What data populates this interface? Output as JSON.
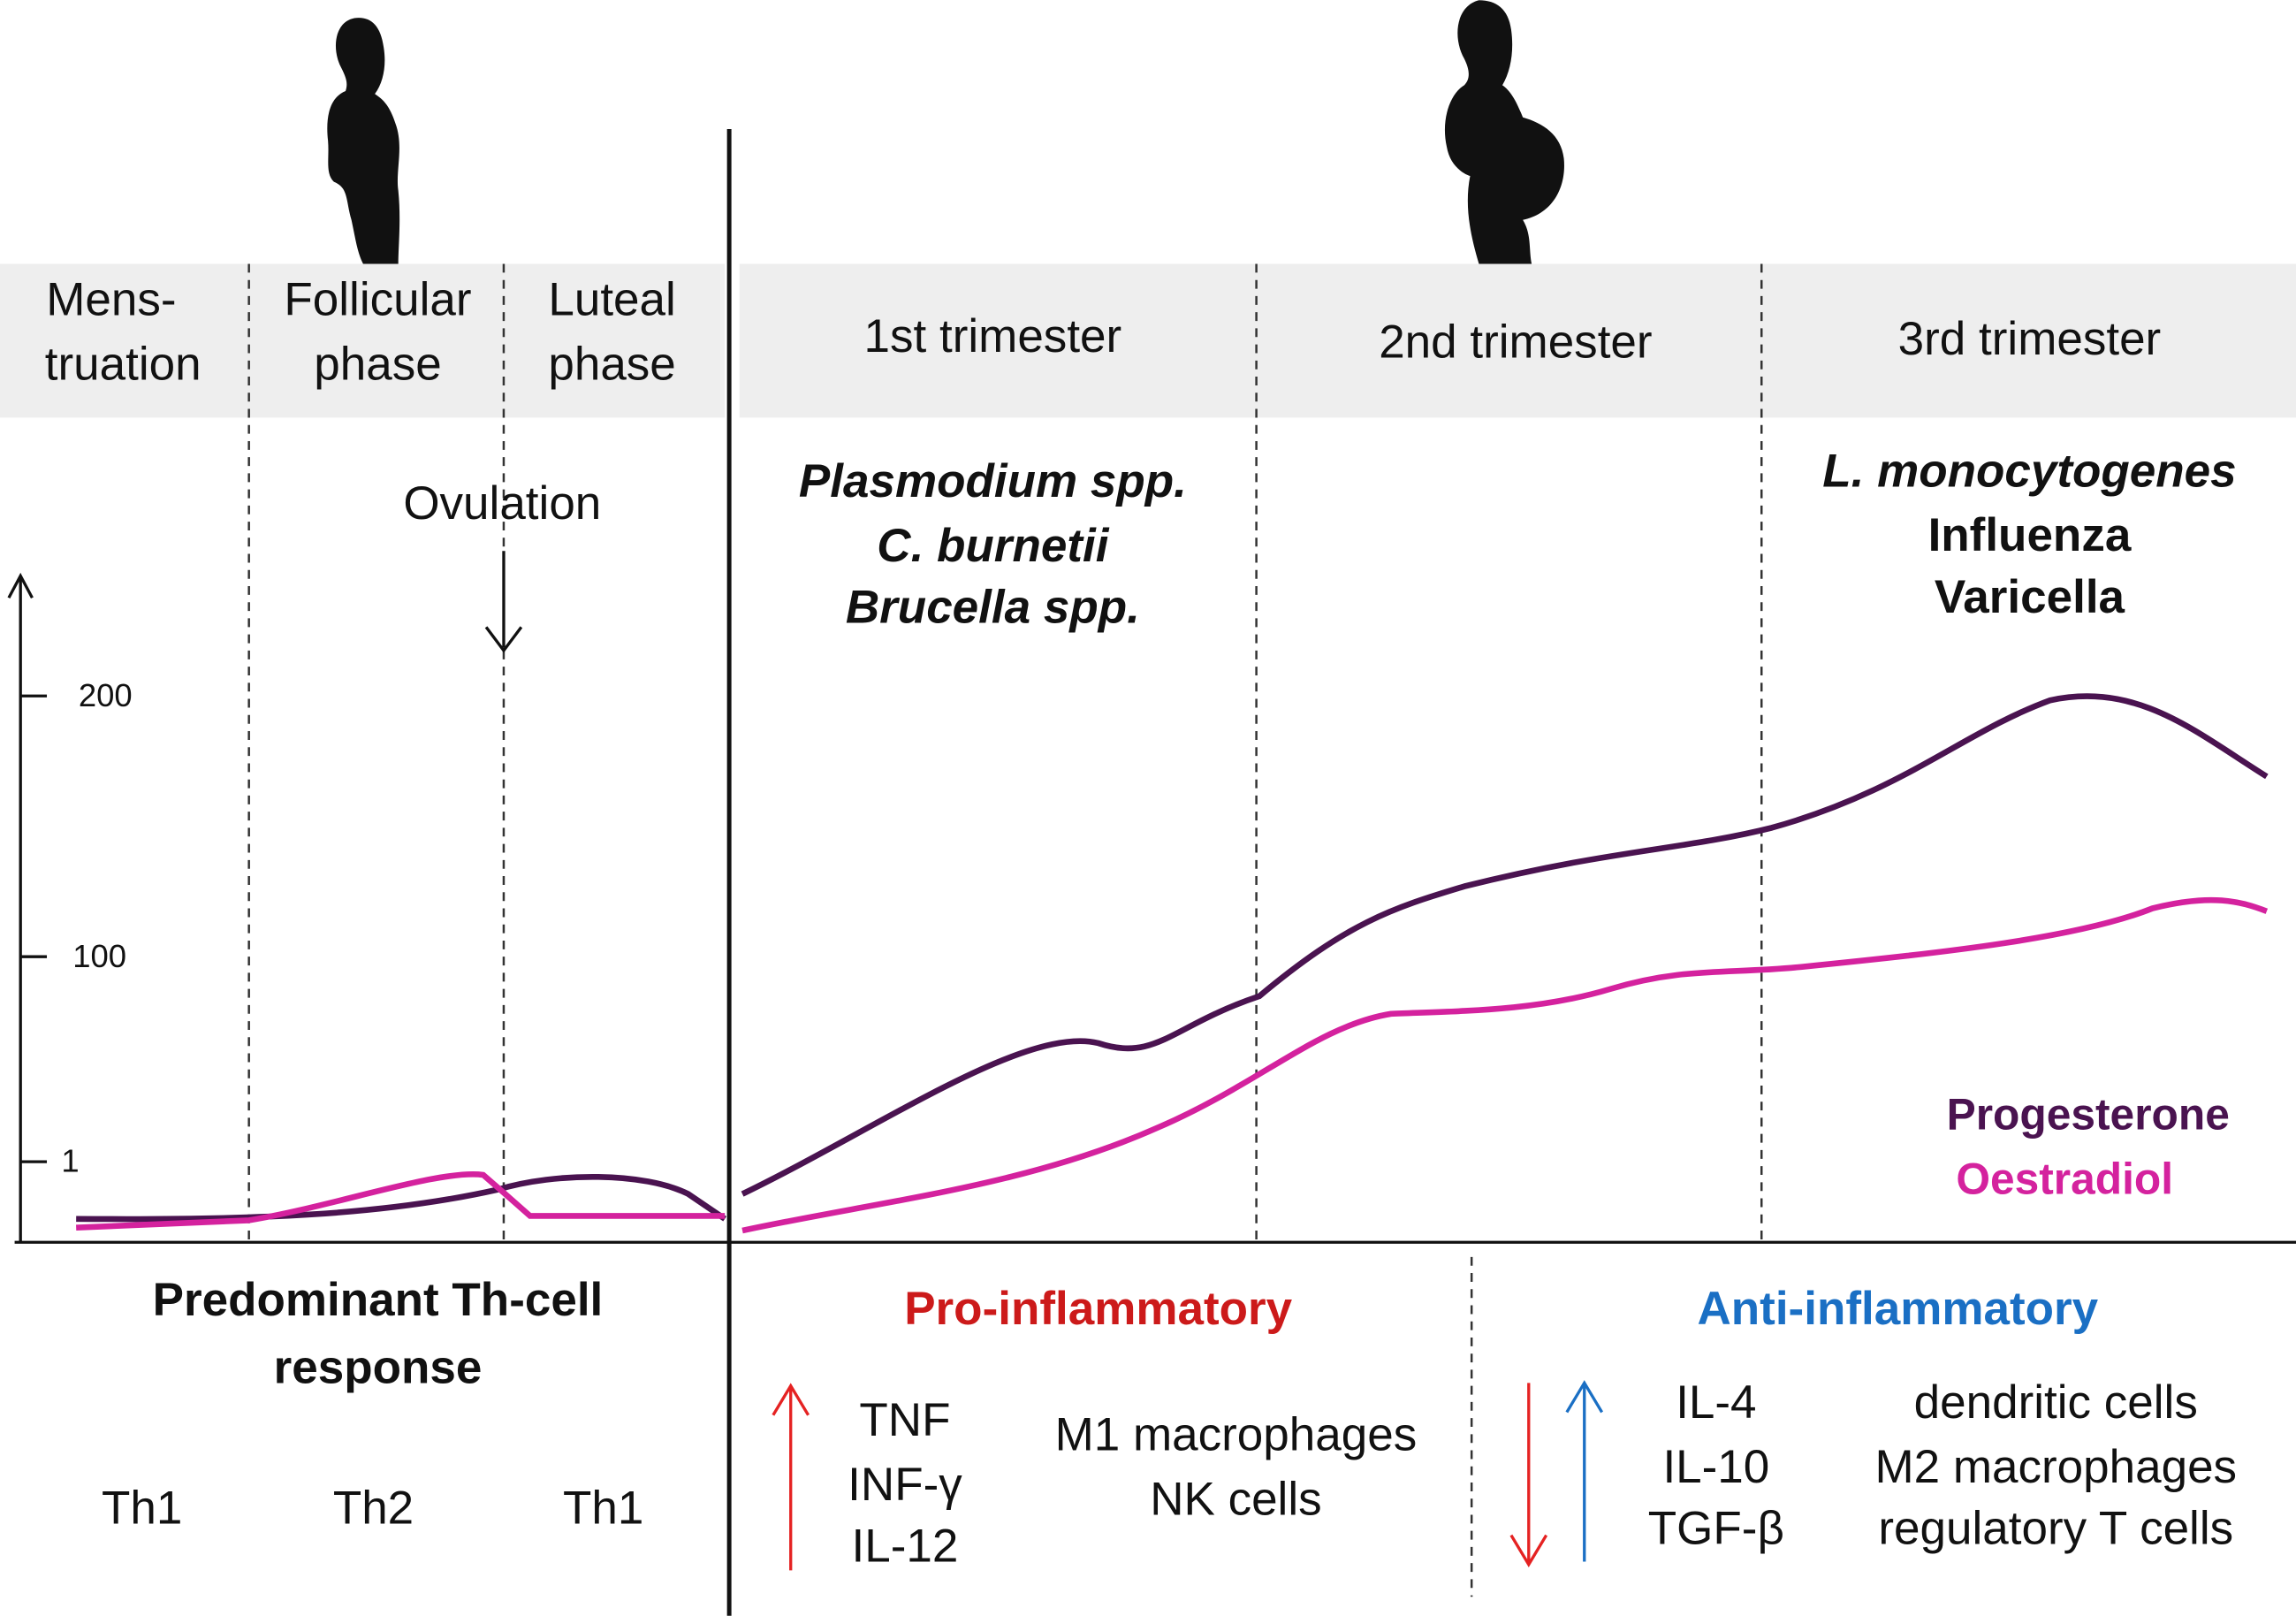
{
  "cycle_phases": [
    {
      "lines": [
        "Mens-",
        "truation"
      ]
    },
    {
      "lines": [
        "Follicular",
        "phase"
      ]
    },
    {
      "lines": [
        "Luteal",
        "phase"
      ]
    }
  ],
  "trimesters": [
    "1st trimester",
    "2nd trimester",
    "3rd trimester"
  ],
  "ovulation": "Ovulation",
  "y_axis_ticks": [
    "200",
    "100",
    "1"
  ],
  "pathogens": {
    "first_trimester": [
      "Plasmodium spp.",
      "C. burnetii",
      "Brucella spp."
    ],
    "third_trimester": [
      "L. monocytogenes",
      "Influenza",
      "Varicella"
    ]
  },
  "legend": [
    "Progesterone",
    "Oestradiol"
  ],
  "th_response": {
    "title": [
      "Predominant Th-cell",
      "response"
    ],
    "types": [
      "Th1",
      "Th2",
      "Th1"
    ]
  },
  "pro_inflammatory": {
    "title": "Pro-inflammatory",
    "cytokines": [
      "TNF",
      "INF-γ",
      "IL-12"
    ],
    "cells": [
      "M1 macrophages",
      "NK cells"
    ]
  },
  "anti_inflammatory": {
    "title": "Anti-inflammatory",
    "cytokines": [
      "IL-4",
      "IL-10",
      "TGF-β"
    ],
    "cells": [
      "dendritic cells",
      "M2 macrophages",
      "regulatory T cells"
    ]
  }
}
